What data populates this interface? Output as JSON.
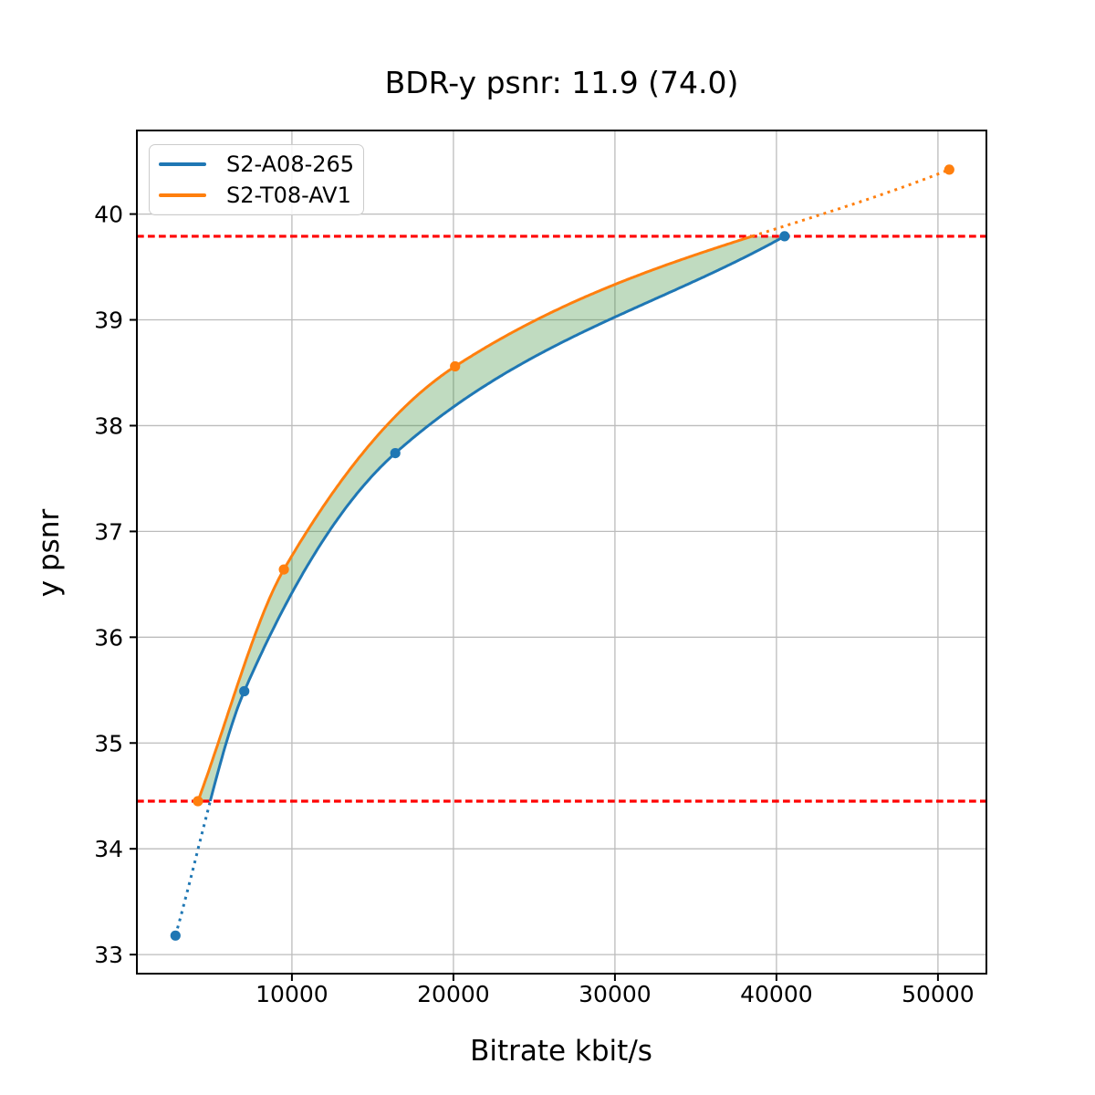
{
  "chart_data": {
    "type": "line",
    "title": "BDR-y psnr: 11.9 (74.0)",
    "xlabel": "Bitrate kbit/s",
    "ylabel": "y psnr",
    "xlim": [
      400,
      53000
    ],
    "ylim": [
      32.82,
      40.79
    ],
    "xticks": [
      10000,
      20000,
      30000,
      40000,
      50000
    ],
    "yticks": [
      33,
      34,
      35,
      36,
      37,
      38,
      39,
      40
    ],
    "grid": true,
    "grid_color": "#bcbcbc",
    "legend_position": "upper left",
    "series": [
      {
        "name": "S2-A08-265",
        "color": "#1f77b4",
        "x": [
          2790,
          7050,
          16400,
          40500
        ],
        "y": [
          33.18,
          35.49,
          37.74,
          39.79
        ]
      },
      {
        "name": "S2-T08-AV1",
        "color": "#ff7f0e",
        "x": [
          4180,
          9500,
          20100,
          50700
        ],
        "y": [
          34.45,
          36.64,
          38.56,
          40.42
        ]
      }
    ],
    "hlines": [
      {
        "y": 39.79,
        "color": "#ff0000",
        "style": "dashed"
      },
      {
        "y": 34.45,
        "color": "#ff0000",
        "style": "dashed"
      }
    ],
    "fill_between": {
      "color": "#3a8f3a",
      "opacity": 0.32,
      "description": "area between the two rate-distortion curves clipped to the overlap band between the red dashed lines"
    },
    "style_note": "curves solid inside overlap band, dotted outside band"
  }
}
